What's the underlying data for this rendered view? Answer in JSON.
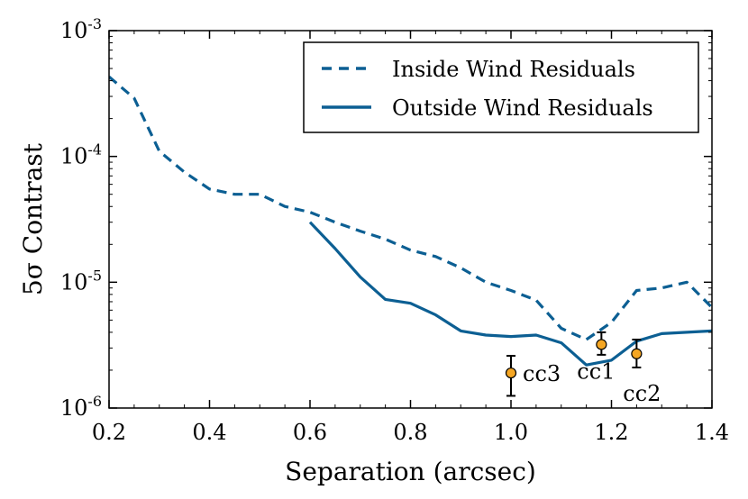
{
  "chart_data": {
    "type": "line",
    "title": "",
    "xlabel": "Separation (arcsec)",
    "ylabel": "5σ Contrast",
    "xlim": [
      0.2,
      1.4
    ],
    "ylim": [
      1e-06,
      0.001
    ],
    "yscale": "log",
    "xticks": [
      0.2,
      0.4,
      0.6,
      0.8,
      1.0,
      1.2,
      1.4
    ],
    "xtick_labels": [
      "0.2",
      "0.4",
      "0.6",
      "0.8",
      "1.0",
      "1.2",
      "1.4"
    ],
    "yticks": [
      {
        "value": 0.001,
        "base": "10",
        "exp": "-3"
      },
      {
        "value": 0.0001,
        "base": "10",
        "exp": "-4"
      },
      {
        "value": 1e-05,
        "base": "10",
        "exp": "-5"
      },
      {
        "value": 1e-06,
        "base": "10",
        "exp": "-6"
      }
    ],
    "legend_position": "top-right",
    "color": "#0c5f93",
    "series": [
      {
        "name": "Inside Wind Residuals",
        "style": "dashed",
        "x": [
          0.2,
          0.25,
          0.3,
          0.35,
          0.4,
          0.45,
          0.5,
          0.55,
          0.6,
          0.65,
          0.7,
          0.75,
          0.8,
          0.85,
          0.9,
          0.95,
          1.0,
          1.05,
          1.1,
          1.15,
          1.2,
          1.25,
          1.3,
          1.35,
          1.4
        ],
        "y": [
          0.00043,
          0.00029,
          0.00011,
          7.5e-05,
          5.5e-05,
          5e-05,
          5e-05,
          4e-05,
          3.6e-05,
          3e-05,
          2.55e-05,
          2.2e-05,
          1.8e-05,
          1.6e-05,
          1.3e-05,
          1e-05,
          8.6e-06,
          7.2e-06,
          4.3e-06,
          3.5e-06,
          4.8e-06,
          8.6e-06,
          9e-06,
          1e-05,
          6.3e-06
        ]
      },
      {
        "name": "Outside Wind Residuals",
        "style": "solid",
        "x": [
          0.6,
          0.65,
          0.7,
          0.75,
          0.8,
          0.85,
          0.9,
          0.95,
          1.0,
          1.05,
          1.1,
          1.15,
          1.2,
          1.25,
          1.3,
          1.35,
          1.4
        ],
        "y": [
          3e-05,
          1.85e-05,
          1.1e-05,
          7.3e-06,
          6.8e-06,
          5.5e-06,
          4.1e-06,
          3.8e-06,
          3.7e-06,
          3.8e-06,
          3.3e-06,
          2.2e-06,
          2.4e-06,
          3.4e-06,
          3.9e-06,
          4e-06,
          4.1e-06
        ]
      }
    ],
    "points": [
      {
        "label": "cc3",
        "x": 1.0,
        "y": 1.9e-06,
        "yerr_low": 1.25e-06,
        "yerr_high": 2.6e-06,
        "label_anchor": "right"
      },
      {
        "label": "cc1",
        "x": 1.18,
        "y": 3.2e-06,
        "yerr_low": 2.65e-06,
        "yerr_high": 4e-06,
        "label_anchor": "below-left"
      },
      {
        "label": "cc2",
        "x": 1.25,
        "y": 2.7e-06,
        "yerr_low": 2.1e-06,
        "yerr_high": 3.5e-06,
        "label_anchor": "below"
      }
    ],
    "point_color": "#f5a623"
  }
}
